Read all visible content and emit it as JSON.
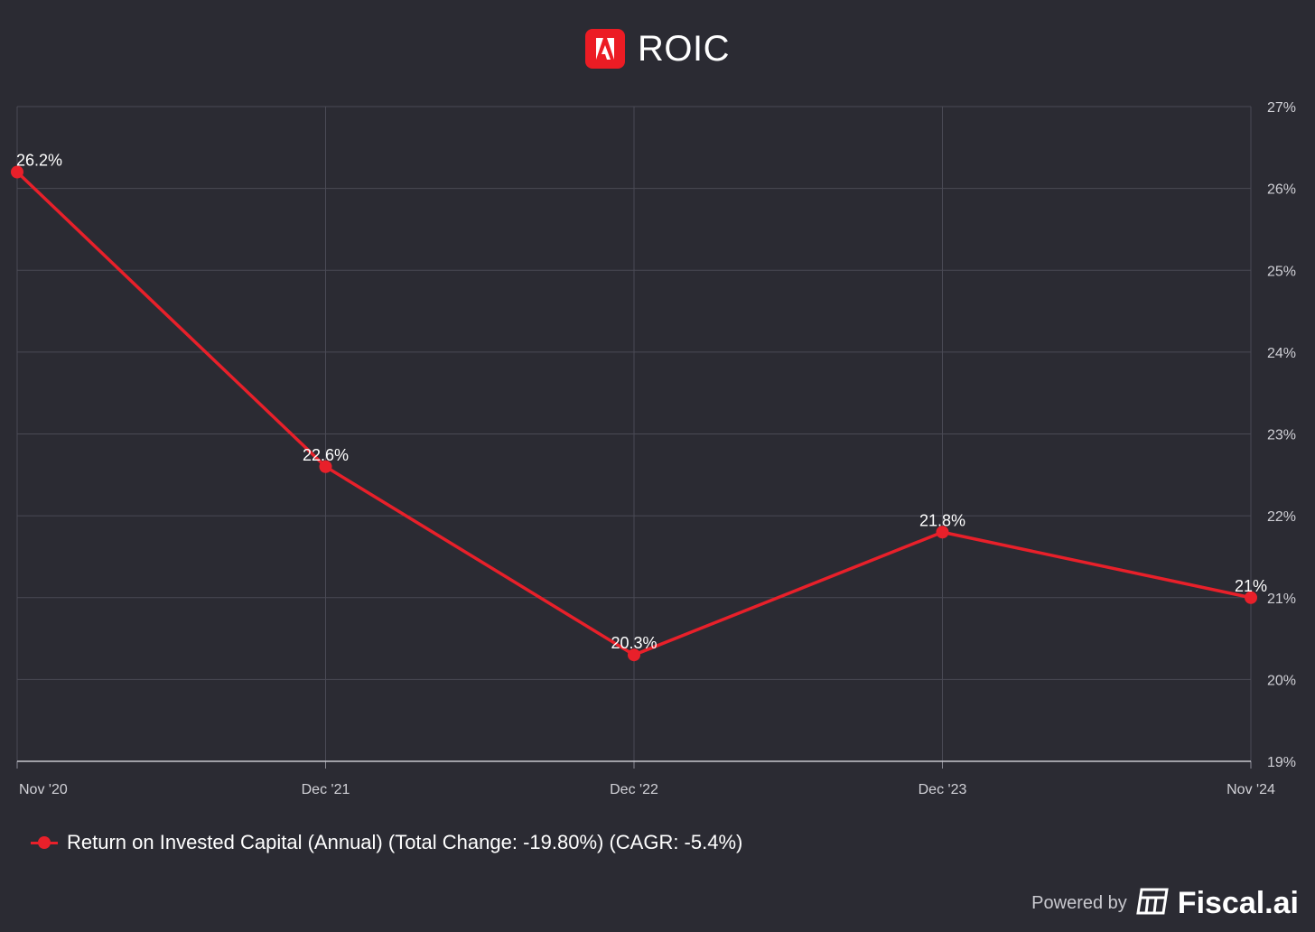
{
  "header": {
    "title": "ROIC"
  },
  "chart_data": {
    "type": "line",
    "title": "ROIC",
    "categories": [
      "Nov '20",
      "Dec '21",
      "Dec '22",
      "Dec '23",
      "Nov '24"
    ],
    "series": [
      {
        "name": "Return on Invested Capital (Annual) (Total Change: -19.80%) (CAGR: -5.4%)",
        "values": [
          26.2,
          22.6,
          20.3,
          21.8,
          21.0
        ],
        "labels": [
          "26.2%",
          "22.6%",
          "20.3%",
          "21.8%",
          "21%"
        ],
        "color": "#e8202a"
      }
    ],
    "ylim": [
      19,
      27
    ],
    "y_ticks": [
      "19%",
      "20%",
      "21%",
      "22%",
      "23%",
      "24%",
      "25%",
      "26%",
      "27%"
    ],
    "y_axis_side": "right",
    "grid": true,
    "legend_position": "bottom-left"
  },
  "legend": {
    "label": "Return on Invested Capital (Annual) (Total Change: -19.80%) (CAGR: -5.4%)"
  },
  "footer": {
    "powered_by": "Powered by",
    "brand": "Fiscal.ai"
  },
  "colors": {
    "background": "#2b2b33",
    "line": "#e8202a",
    "grid": "#4a4a55",
    "logo": "#ec1c24"
  },
  "icons": {
    "logo": "adobe-logo-icon",
    "brand": "fiscal-logo-icon"
  }
}
